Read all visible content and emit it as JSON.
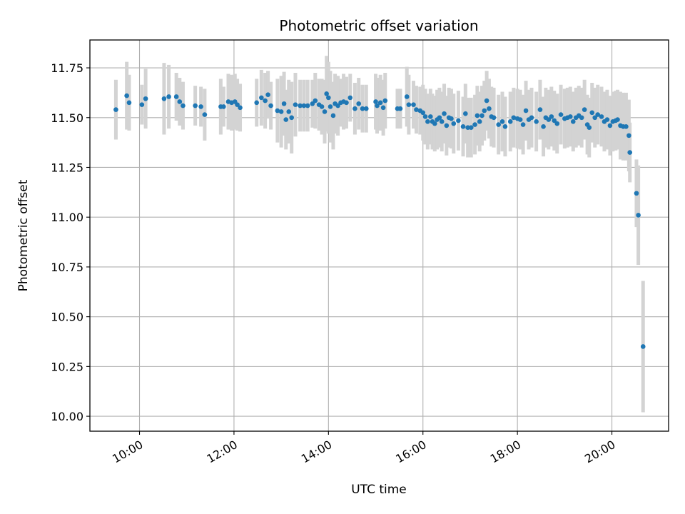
{
  "chart_data": {
    "type": "scatter",
    "title": "Photometric offset variation",
    "xlabel": "UTC time",
    "ylabel": "Photometric offset",
    "x_unit": "UTC time of day (hours)",
    "x_tick_labels": [
      "10:00",
      "12:00",
      "14:00",
      "16:00",
      "18:00",
      "20:00"
    ],
    "x_ticks": [
      10,
      12,
      14,
      16,
      18,
      20
    ],
    "y_tick_labels": [
      "10.00",
      "10.25",
      "10.50",
      "10.75",
      "11.00",
      "11.25",
      "11.50",
      "11.75"
    ],
    "y_ticks": [
      10.0,
      10.25,
      10.5,
      10.75,
      11.0,
      11.25,
      11.5,
      11.75
    ],
    "xlim": [
      8.95,
      21.2
    ],
    "ylim": [
      9.925,
      11.89
    ],
    "grid": true,
    "colors": {
      "points": "#1f77b4",
      "errorbars": "#d3d3d3",
      "grid": "#b0b0b0"
    },
    "series": [
      {
        "points": [
          [
            9.5,
            11.54,
            0.15
          ],
          [
            9.73,
            11.61,
            0.17
          ],
          [
            9.78,
            11.575,
            0.14
          ],
          [
            10.05,
            11.565,
            0.1
          ],
          [
            10.13,
            11.595,
            0.15
          ],
          [
            10.52,
            11.595,
            0.18
          ],
          [
            10.62,
            11.605,
            0.16
          ],
          [
            10.78,
            11.605,
            0.12
          ],
          [
            10.85,
            11.58,
            0.12
          ],
          [
            10.92,
            11.56,
            0.12
          ],
          [
            11.18,
            11.56,
            0.1
          ],
          [
            11.3,
            11.555,
            0.1
          ],
          [
            11.38,
            11.515,
            0.13
          ],
          [
            11.72,
            11.555,
            0.14
          ],
          [
            11.78,
            11.555,
            0.1
          ],
          [
            11.88,
            11.58,
            0.14
          ],
          [
            11.95,
            11.575,
            0.14
          ],
          [
            12.02,
            11.58,
            0.14
          ],
          [
            12.07,
            11.565,
            0.13
          ],
          [
            12.13,
            11.55,
            0.12
          ],
          [
            12.48,
            11.575,
            0.12
          ],
          [
            12.58,
            11.6,
            0.14
          ],
          [
            12.66,
            11.585,
            0.14
          ],
          [
            12.72,
            11.615,
            0.12
          ],
          [
            12.78,
            11.56,
            0.12
          ],
          [
            12.92,
            11.535,
            0.16
          ],
          [
            13.0,
            11.53,
            0.18
          ],
          [
            13.06,
            11.57,
            0.16
          ],
          [
            13.1,
            11.49,
            0.15
          ],
          [
            13.16,
            11.53,
            0.16
          ],
          [
            13.22,
            11.5,
            0.18
          ],
          [
            13.3,
            11.565,
            0.16
          ],
          [
            13.4,
            11.56,
            0.13
          ],
          [
            13.48,
            11.56,
            0.13
          ],
          [
            13.56,
            11.56,
            0.13
          ],
          [
            13.66,
            11.57,
            0.12
          ],
          [
            13.72,
            11.585,
            0.14
          ],
          [
            13.8,
            11.565,
            0.13
          ],
          [
            13.86,
            11.555,
            0.14
          ],
          [
            13.92,
            11.53,
            0.16
          ],
          [
            13.96,
            11.62,
            0.19
          ],
          [
            14.0,
            11.6,
            0.18
          ],
          [
            14.04,
            11.555,
            0.18
          ],
          [
            14.1,
            11.51,
            0.17
          ],
          [
            14.14,
            11.57,
            0.15
          ],
          [
            14.2,
            11.56,
            0.15
          ],
          [
            14.26,
            11.575,
            0.12
          ],
          [
            14.32,
            11.58,
            0.14
          ],
          [
            14.38,
            11.575,
            0.13
          ],
          [
            14.46,
            11.6,
            0.12
          ],
          [
            14.56,
            11.545,
            0.13
          ],
          [
            14.64,
            11.57,
            0.13
          ],
          [
            14.72,
            11.545,
            0.12
          ],
          [
            14.8,
            11.545,
            0.12
          ],
          [
            15.0,
            11.58,
            0.14
          ],
          [
            15.03,
            11.56,
            0.14
          ],
          [
            15.1,
            11.575,
            0.14
          ],
          [
            15.16,
            11.55,
            0.14
          ],
          [
            15.2,
            11.585,
            0.14
          ],
          [
            15.46,
            11.545,
            0.1
          ],
          [
            15.52,
            11.545,
            0.1
          ],
          [
            15.66,
            11.605,
            0.15
          ],
          [
            15.7,
            11.565,
            0.15
          ],
          [
            15.8,
            11.565,
            0.12
          ],
          [
            15.86,
            11.54,
            0.12
          ],
          [
            15.94,
            11.535,
            0.12
          ],
          [
            16.0,
            11.525,
            0.14
          ],
          [
            16.05,
            11.505,
            0.14
          ],
          [
            16.1,
            11.48,
            0.14
          ],
          [
            16.16,
            11.505,
            0.14
          ],
          [
            16.2,
            11.48,
            0.14
          ],
          [
            16.25,
            11.47,
            0.14
          ],
          [
            16.3,
            11.49,
            0.15
          ],
          [
            16.35,
            11.5,
            0.15
          ],
          [
            16.4,
            11.48,
            0.15
          ],
          [
            16.45,
            11.52,
            0.15
          ],
          [
            16.5,
            11.46,
            0.15
          ],
          [
            16.55,
            11.5,
            0.15
          ],
          [
            16.6,
            11.495,
            0.15
          ],
          [
            16.65,
            11.47,
            0.15
          ],
          [
            16.75,
            11.485,
            0.15
          ],
          [
            16.85,
            11.455,
            0.15
          ],
          [
            16.9,
            11.52,
            0.15
          ],
          [
            16.95,
            11.45,
            0.15
          ],
          [
            17.02,
            11.45,
            0.15
          ],
          [
            17.1,
            11.465,
            0.15
          ],
          [
            17.15,
            11.51,
            0.15
          ],
          [
            17.2,
            11.48,
            0.15
          ],
          [
            17.25,
            11.51,
            0.15
          ],
          [
            17.3,
            11.535,
            0.15
          ],
          [
            17.35,
            11.585,
            0.15
          ],
          [
            17.4,
            11.545,
            0.15
          ],
          [
            17.45,
            11.505,
            0.15
          ],
          [
            17.5,
            11.5,
            0.15
          ],
          [
            17.6,
            11.465,
            0.15
          ],
          [
            17.68,
            11.48,
            0.15
          ],
          [
            17.74,
            11.455,
            0.15
          ],
          [
            17.85,
            11.48,
            0.15
          ],
          [
            17.92,
            11.5,
            0.15
          ],
          [
            18.0,
            11.495,
            0.15
          ],
          [
            18.06,
            11.49,
            0.15
          ],
          [
            18.12,
            11.465,
            0.15
          ],
          [
            18.18,
            11.535,
            0.15
          ],
          [
            18.24,
            11.49,
            0.15
          ],
          [
            18.3,
            11.5,
            0.15
          ],
          [
            18.4,
            11.48,
            0.15
          ],
          [
            18.48,
            11.54,
            0.15
          ],
          [
            18.55,
            11.455,
            0.15
          ],
          [
            18.6,
            11.5,
            0.15
          ],
          [
            18.66,
            11.49,
            0.15
          ],
          [
            18.72,
            11.505,
            0.15
          ],
          [
            18.78,
            11.485,
            0.15
          ],
          [
            18.84,
            11.47,
            0.15
          ],
          [
            18.92,
            11.515,
            0.15
          ],
          [
            19.0,
            11.495,
            0.15
          ],
          [
            19.06,
            11.5,
            0.15
          ],
          [
            19.12,
            11.505,
            0.15
          ],
          [
            19.18,
            11.48,
            0.15
          ],
          [
            19.24,
            11.5,
            0.15
          ],
          [
            19.3,
            11.51,
            0.15
          ],
          [
            19.36,
            11.5,
            0.15
          ],
          [
            19.42,
            11.54,
            0.15
          ],
          [
            19.48,
            11.465,
            0.15
          ],
          [
            19.52,
            11.45,
            0.15
          ],
          [
            19.58,
            11.525,
            0.15
          ],
          [
            19.64,
            11.5,
            0.15
          ],
          [
            19.7,
            11.515,
            0.15
          ],
          [
            19.78,
            11.505,
            0.15
          ],
          [
            19.84,
            11.48,
            0.15
          ],
          [
            19.9,
            11.49,
            0.15
          ],
          [
            19.96,
            11.46,
            0.15
          ],
          [
            20.02,
            11.48,
            0.15
          ],
          [
            20.08,
            11.485,
            0.15
          ],
          [
            20.12,
            11.49,
            0.15
          ],
          [
            20.18,
            11.46,
            0.17
          ],
          [
            20.24,
            11.455,
            0.17
          ],
          [
            20.3,
            11.455,
            0.17
          ],
          [
            20.36,
            11.41,
            0.18
          ],
          [
            20.38,
            11.325,
            0.15
          ],
          [
            20.52,
            11.12,
            0.17
          ],
          [
            20.56,
            11.01,
            0.25
          ],
          [
            20.66,
            10.35,
            0.33
          ]
        ]
      }
    ]
  }
}
